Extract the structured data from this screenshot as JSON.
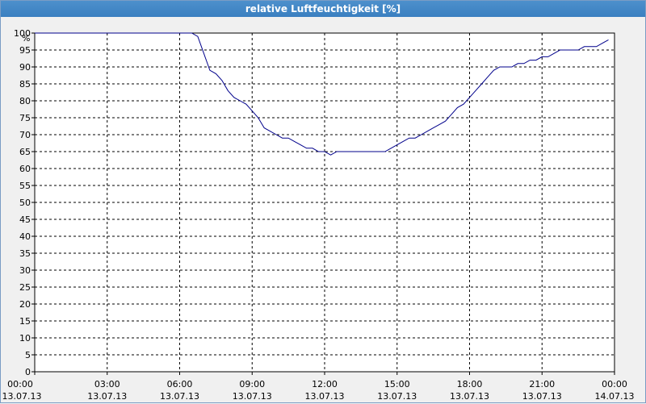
{
  "window": {
    "title": "relative Luftfeuchtigkeit [%]"
  },
  "colors": {
    "line": "#00008b",
    "grid": "#000000",
    "plot_bg": "#ffffff"
  },
  "chart_data": {
    "type": "line",
    "title": "relative Luftfeuchtigkeit [%]",
    "ylabel": "%",
    "xlabel": "",
    "ylim": [
      0,
      100
    ],
    "ytick_step": 5,
    "xlim": [
      "13.07.13 00:00",
      "14.07.13 00:00"
    ],
    "grid": true,
    "xticks": [
      {
        "time": "00:00",
        "date": "13.07.13"
      },
      {
        "time": "03:00",
        "date": "13.07.13"
      },
      {
        "time": "06:00",
        "date": "13.07.13"
      },
      {
        "time": "09:00",
        "date": "13.07.13"
      },
      {
        "time": "12:00",
        "date": "13.07.13"
      },
      {
        "time": "15:00",
        "date": "13.07.13"
      },
      {
        "time": "18:00",
        "date": "13.07.13"
      },
      {
        "time": "21:00",
        "date": "13.07.13"
      },
      {
        "time": "00:00",
        "date": "14.07.13"
      }
    ],
    "series": [
      {
        "name": "",
        "x": [
          "13.07.13 00:00",
          "13.07.13 03:00",
          "13.07.13 06:00",
          "13.07.13 06:30",
          "13.07.13 06:45",
          "13.07.13 07:00",
          "13.07.13 07:15",
          "13.07.13 07:30",
          "13.07.13 07:45",
          "13.07.13 08:00",
          "13.07.13 08:15",
          "13.07.13 08:30",
          "13.07.13 08:45",
          "13.07.13 09:00",
          "13.07.13 09:15",
          "13.07.13 09:30",
          "13.07.13 09:45",
          "13.07.13 10:00",
          "13.07.13 10:15",
          "13.07.13 10:30",
          "13.07.13 10:45",
          "13.07.13 11:00",
          "13.07.13 11:15",
          "13.07.13 11:30",
          "13.07.13 11:45",
          "13.07.13 12:00",
          "13.07.13 12:15",
          "13.07.13 12:30",
          "13.07.13 12:45",
          "13.07.13 13:00",
          "13.07.13 13:15",
          "13.07.13 13:30",
          "13.07.13 13:45",
          "13.07.13 14:00",
          "13.07.13 14:15",
          "13.07.13 14:30",
          "13.07.13 14:45",
          "13.07.13 15:00",
          "13.07.13 15:15",
          "13.07.13 15:30",
          "13.07.13 15:45",
          "13.07.13 16:00",
          "13.07.13 16:15",
          "13.07.13 16:30",
          "13.07.13 16:45",
          "13.07.13 17:00",
          "13.07.13 17:15",
          "13.07.13 17:30",
          "13.07.13 17:45",
          "13.07.13 18:00",
          "13.07.13 18:15",
          "13.07.13 18:30",
          "13.07.13 18:45",
          "13.07.13 19:00",
          "13.07.13 19:15",
          "13.07.13 19:30",
          "13.07.13 19:45",
          "13.07.13 20:00",
          "13.07.13 20:15",
          "13.07.13 20:30",
          "13.07.13 20:45",
          "13.07.13 21:00",
          "13.07.13 21:15",
          "13.07.13 21:30",
          "13.07.13 21:45",
          "13.07.13 22:00",
          "13.07.13 22:15",
          "13.07.13 22:30",
          "13.07.13 22:45",
          "13.07.13 23:00",
          "13.07.13 23:15",
          "13.07.13 23:30",
          "13.07.13 23:45"
        ],
        "values": [
          100,
          100,
          100,
          100,
          99,
          94,
          89,
          88,
          86,
          83,
          81,
          80,
          79,
          77,
          75,
          72,
          71,
          70,
          69,
          69,
          68,
          67,
          66,
          66,
          65,
          65,
          64,
          65,
          65,
          65,
          65,
          65,
          65,
          65,
          65,
          65,
          66,
          67,
          68,
          69,
          69,
          70,
          71,
          72,
          73,
          74,
          76,
          78,
          79,
          81,
          83,
          85,
          87,
          89,
          90,
          90,
          90,
          91,
          91,
          92,
          92,
          93,
          93,
          94,
          95,
          95,
          95,
          95,
          96,
          96,
          96,
          97,
          98
        ]
      }
    ]
  }
}
